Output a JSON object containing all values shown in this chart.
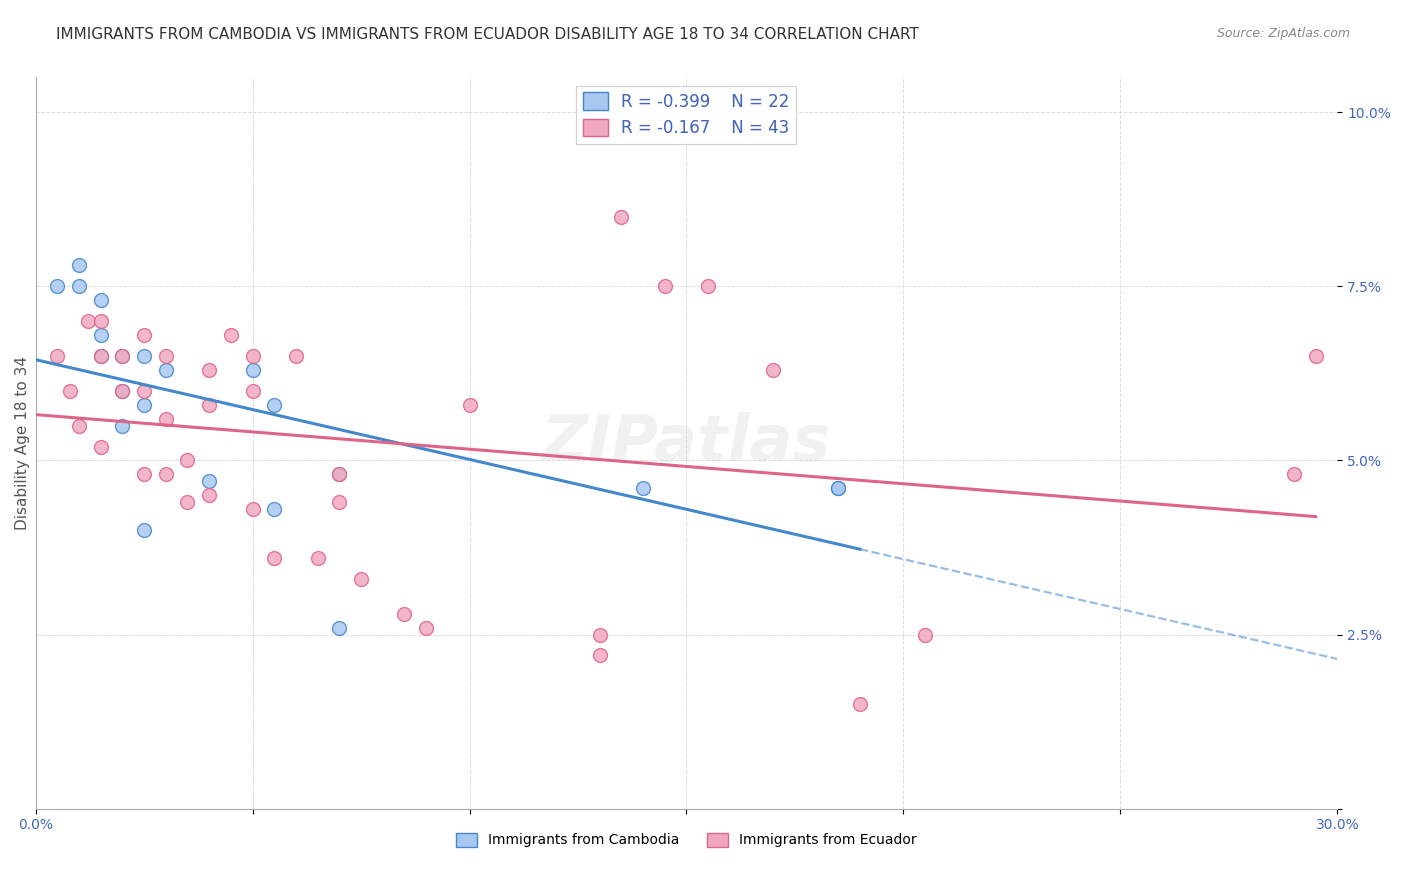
{
  "title": "IMMIGRANTS FROM CAMBODIA VS IMMIGRANTS FROM ECUADOR DISABILITY AGE 18 TO 34 CORRELATION CHART",
  "source": "Source: ZipAtlas.com",
  "ylabel": "Disability Age 18 to 34",
  "xlim": [
    0.0,
    0.3
  ],
  "ylim": [
    0.0,
    0.105
  ],
  "xticks": [
    0.0,
    0.05,
    0.1,
    0.15,
    0.2,
    0.25,
    0.3
  ],
  "yticks": [
    0.0,
    0.025,
    0.05,
    0.075,
    0.1
  ],
  "legend_r_cambodia": "-0.399",
  "legend_n_cambodia": "22",
  "legend_r_ecuador": "-0.167",
  "legend_n_ecuador": "43",
  "legend_label_cambodia": "Immigrants from Cambodia",
  "legend_label_ecuador": "Immigrants from Ecuador",
  "color_cambodia": "#a8c8f0",
  "color_ecuador": "#f0a8c0",
  "color_line_cambodia": "#4488cc",
  "color_line_ecuador": "#dd6688",
  "color_grid": "#dddddd",
  "color_title": "#333333",
  "color_legend": "#4466bb",
  "background_color": "#ffffff",
  "cambodia_x": [
    0.005,
    0.01,
    0.01,
    0.015,
    0.015,
    0.015,
    0.02,
    0.02,
    0.02,
    0.025,
    0.025,
    0.025,
    0.03,
    0.04,
    0.05,
    0.055,
    0.055,
    0.07,
    0.07,
    0.14,
    0.185,
    0.185
  ],
  "cambodia_y": [
    0.075,
    0.078,
    0.075,
    0.073,
    0.068,
    0.065,
    0.065,
    0.06,
    0.055,
    0.065,
    0.058,
    0.04,
    0.063,
    0.047,
    0.063,
    0.058,
    0.043,
    0.048,
    0.026,
    0.046,
    0.046,
    0.046
  ],
  "ecuador_x": [
    0.005,
    0.008,
    0.01,
    0.012,
    0.015,
    0.015,
    0.015,
    0.02,
    0.02,
    0.025,
    0.025,
    0.025,
    0.03,
    0.03,
    0.03,
    0.035,
    0.035,
    0.04,
    0.04,
    0.04,
    0.045,
    0.05,
    0.05,
    0.05,
    0.055,
    0.06,
    0.065,
    0.07,
    0.07,
    0.075,
    0.085,
    0.09,
    0.1,
    0.13,
    0.13,
    0.135,
    0.145,
    0.155,
    0.17,
    0.19,
    0.205,
    0.29,
    0.295
  ],
  "ecuador_y": [
    0.065,
    0.06,
    0.055,
    0.07,
    0.07,
    0.065,
    0.052,
    0.065,
    0.06,
    0.068,
    0.06,
    0.048,
    0.065,
    0.056,
    0.048,
    0.05,
    0.044,
    0.063,
    0.058,
    0.045,
    0.068,
    0.065,
    0.06,
    0.043,
    0.036,
    0.065,
    0.036,
    0.048,
    0.044,
    0.033,
    0.028,
    0.026,
    0.058,
    0.025,
    0.022,
    0.085,
    0.075,
    0.075,
    0.063,
    0.015,
    0.025,
    0.048,
    0.065
  ],
  "title_fontsize": 11,
  "axis_label_fontsize": 11,
  "tick_fontsize": 10,
  "marker_size": 100
}
